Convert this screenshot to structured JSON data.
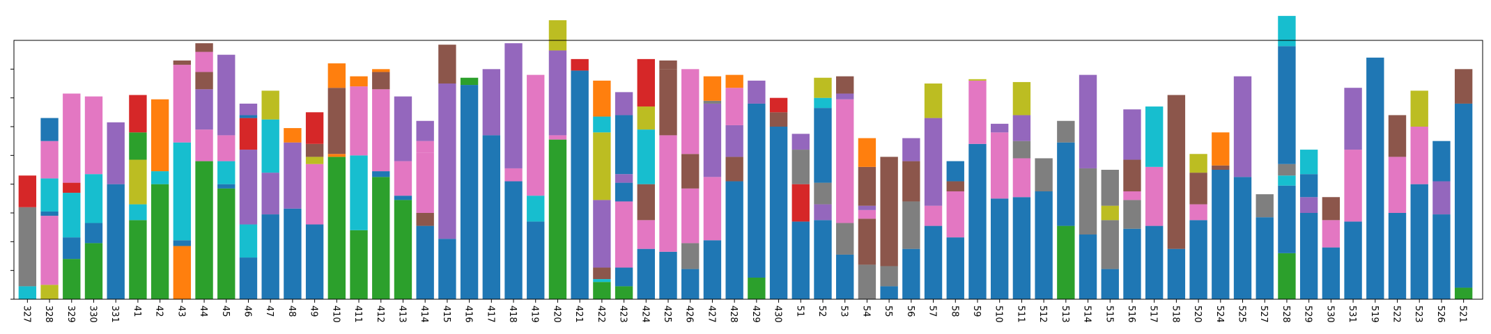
{
  "chart_data": {
    "type": "bar",
    "stacked": true,
    "title": "",
    "xlabel": "",
    "ylabel": "",
    "ylim": [
      0,
      90
    ],
    "yticks": [
      0,
      10,
      20,
      30,
      40,
      50,
      60,
      70,
      80
    ],
    "ytick_labels_visible": false,
    "grid": false,
    "legend": "none",
    "colors": {
      "blue": "#1f77b4",
      "orange": "#ff7f0e",
      "green": "#2ca02c",
      "red": "#d62728",
      "purple": "#9467bd",
      "brown": "#8c564b",
      "pink": "#e377c2",
      "gray": "#7f7f7f",
      "olive": "#bcbd22",
      "cyan": "#17becf"
    },
    "categories": [
      "327",
      "328",
      "329",
      "330",
      "331",
      "41",
      "42",
      "43",
      "44",
      "45",
      "46",
      "47",
      "48",
      "49",
      "410",
      "411",
      "412",
      "413",
      "414",
      "415",
      "416",
      "417",
      "418",
      "419",
      "420",
      "421",
      "422",
      "423",
      "424",
      "425",
      "426",
      "427",
      "428",
      "429",
      "430",
      "51",
      "52",
      "53",
      "54",
      "55",
      "56",
      "57",
      "58",
      "59",
      "510",
      "511",
      "512",
      "513",
      "514",
      "515",
      "516",
      "517",
      "518",
      "520",
      "524",
      "525",
      "527",
      "528",
      "529",
      "530",
      "531",
      "519",
      "522",
      "523",
      "526",
      "521"
    ],
    "stacks": [
      [
        [
          "cyan",
          4.5
        ],
        [
          "gray",
          27.5
        ],
        [
          "red",
          11
        ]
      ],
      [
        [
          "olive",
          5
        ],
        [
          "pink",
          24
        ],
        [
          "blue",
          1.5
        ],
        [
          "cyan",
          11.5
        ],
        [
          "pink",
          13
        ],
        [
          "blue",
          8
        ]
      ],
      [
        [
          "green",
          14
        ],
        [
          "blue",
          7.5
        ],
        [
          "cyan",
          15.5
        ],
        [
          "red",
          3.5
        ],
        [
          "pink",
          31
        ]
      ],
      [
        [
          "green",
          19.5
        ],
        [
          "blue",
          7
        ],
        [
          "cyan",
          17
        ],
        [
          "pink",
          27
        ]
      ],
      [
        [
          "blue",
          40
        ],
        [
          "purple",
          21.5
        ]
      ],
      [
        [
          "green",
          27.5
        ],
        [
          "cyan",
          5.5
        ],
        [
          "olive",
          15.5
        ],
        [
          "green",
          9.5
        ],
        [
          "red",
          13
        ]
      ],
      [
        [
          "green",
          40
        ],
        [
          "cyan",
          4.5
        ],
        [
          "orange",
          25
        ]
      ],
      [
        [
          "orange",
          18.5
        ],
        [
          "blue",
          2
        ],
        [
          "cyan",
          34
        ],
        [
          "pink",
          27
        ],
        [
          "brown",
          1.5
        ]
      ],
      [
        [
          "green",
          48
        ],
        [
          "pink",
          11
        ],
        [
          "purple",
          14
        ],
        [
          "brown",
          6
        ],
        [
          "pink",
          7
        ],
        [
          "brown",
          3
        ]
      ],
      [
        [
          "green",
          38.5
        ],
        [
          "blue",
          1.5
        ],
        [
          "cyan",
          8
        ],
        [
          "pink",
          9
        ],
        [
          "purple",
          28
        ]
      ],
      [
        [
          "blue",
          14.5
        ],
        [
          "cyan",
          11.5
        ],
        [
          "purple",
          26
        ],
        [
          "red",
          11
        ],
        [
          "blue",
          1
        ],
        [
          "purple",
          4
        ]
      ],
      [
        [
          "blue",
          29.5
        ],
        [
          "purple",
          14.5
        ],
        [
          "cyan",
          18.5
        ],
        [
          "olive",
          10
        ]
      ],
      [
        [
          "blue",
          31.5
        ],
        [
          "purple",
          23
        ],
        [
          "orange",
          5
        ]
      ],
      [
        [
          "blue",
          26
        ],
        [
          "pink",
          21
        ],
        [
          "olive",
          2.5
        ],
        [
          "brown",
          4.5
        ],
        [
          "red",
          11
        ]
      ],
      [
        [
          "green",
          49.5
        ],
        [
          "orange",
          1
        ],
        [
          "brown",
          23
        ],
        [
          "orange",
          8.5
        ]
      ],
      [
        [
          "green",
          24
        ],
        [
          "cyan",
          26
        ],
        [
          "pink",
          24
        ],
        [
          "orange",
          3.5
        ]
      ],
      [
        [
          "green",
          42.5
        ],
        [
          "blue",
          2
        ],
        [
          "pink",
          28.5
        ],
        [
          "brown",
          6
        ],
        [
          "orange",
          1
        ]
      ],
      [
        [
          "green",
          34.5
        ],
        [
          "blue",
          1.5
        ],
        [
          "pink",
          12
        ],
        [
          "purple",
          22.5
        ]
      ],
      [
        [
          "blue",
          25.5
        ],
        [
          "brown",
          4.5
        ],
        [
          "pink",
          21
        ],
        [
          "pink",
          4
        ],
        [
          "purple",
          7
        ]
      ],
      [
        [
          "blue",
          21
        ],
        [
          "purple",
          54
        ],
        [
          "brown",
          13.5
        ]
      ],
      [
        [
          "blue",
          74.5
        ],
        [
          "green",
          2.5
        ]
      ],
      [
        [
          "blue",
          57
        ],
        [
          "purple",
          23
        ]
      ],
      [
        [
          "blue",
          41
        ],
        [
          "pink",
          4.5
        ],
        [
          "purple",
          43.5
        ]
      ],
      [
        [
          "blue",
          27
        ],
        [
          "cyan",
          9
        ],
        [
          "pink",
          42
        ]
      ],
      [
        [
          "green",
          55.5
        ],
        [
          "pink",
          1.5
        ],
        [
          "purple",
          29.5
        ],
        [
          "olive",
          10.5
        ]
      ],
      [
        [
          "blue",
          79.5
        ],
        [
          "red",
          4
        ]
      ],
      [
        [
          "green",
          6
        ],
        [
          "cyan",
          1
        ],
        [
          "brown",
          4
        ],
        [
          "purple",
          23.5
        ],
        [
          "olive",
          23.5
        ],
        [
          "cyan",
          5.5
        ],
        [
          "orange",
          12.5
        ]
      ],
      [
        [
          "green",
          4.5
        ],
        [
          "blue",
          6.5
        ],
        [
          "pink",
          23
        ],
        [
          "blue",
          6.5
        ],
        [
          "purple",
          3
        ],
        [
          "blue",
          20.5
        ],
        [
          "purple",
          8
        ]
      ],
      [
        [
          "blue",
          17.5
        ],
        [
          "pink",
          10
        ],
        [
          "brown",
          12.5
        ],
        [
          "cyan",
          19
        ],
        [
          "olive",
          8
        ],
        [
          "red",
          16.5
        ]
      ],
      [
        [
          "blue",
          16.5
        ],
        [
          "pink",
          40.5
        ],
        [
          "brown",
          23
        ],
        [
          "brown",
          3
        ]
      ],
      [
        [
          "blue",
          10.5
        ],
        [
          "gray",
          9
        ],
        [
          "pink",
          19
        ],
        [
          "brown",
          12
        ],
        [
          "pink",
          29.5
        ]
      ],
      [
        [
          "blue",
          20.5
        ],
        [
          "pink",
          22
        ],
        [
          "purple",
          25.5
        ],
        [
          "gray",
          1
        ],
        [
          "orange",
          8.5
        ]
      ],
      [
        [
          "blue",
          41
        ],
        [
          "brown",
          8.5
        ],
        [
          "purple",
          11
        ],
        [
          "pink",
          13
        ],
        [
          "orange",
          4.5
        ]
      ],
      [
        [
          "green",
          7.5
        ],
        [
          "blue",
          60.5
        ],
        [
          "purple",
          8
        ]
      ],
      [
        [
          "blue",
          60
        ],
        [
          "brown",
          5
        ],
        [
          "red",
          5
        ]
      ],
      [
        [
          "blue",
          27
        ],
        [
          "red",
          13
        ],
        [
          "gray",
          12
        ],
        [
          "purple",
          5.5
        ]
      ],
      [
        [
          "blue",
          27.5
        ],
        [
          "purple",
          5.5
        ],
        [
          "gray",
          7.5
        ],
        [
          "blue",
          26
        ],
        [
          "cyan",
          3.5
        ],
        [
          "olive",
          7
        ]
      ],
      [
        [
          "blue",
          15.5
        ],
        [
          "gray",
          11
        ],
        [
          "pink",
          43
        ],
        [
          "purple",
          2
        ],
        [
          "brown",
          6
        ]
      ],
      [
        [
          "gray",
          12
        ],
        [
          "brown",
          16
        ],
        [
          "pink",
          3
        ],
        [
          "purple",
          1.5
        ],
        [
          "brown",
          13.5
        ],
        [
          "orange",
          10
        ]
      ],
      [
        [
          "blue",
          4.5
        ],
        [
          "gray",
          7
        ],
        [
          "brown",
          38
        ]
      ],
      [
        [
          "blue",
          17.5
        ],
        [
          "gray",
          16.5
        ],
        [
          "brown",
          14
        ],
        [
          "purple",
          8
        ]
      ],
      [
        [
          "blue",
          25.5
        ],
        [
          "pink",
          7
        ],
        [
          "purple",
          30.5
        ],
        [
          "olive",
          12
        ]
      ],
      [
        [
          "blue",
          21.5
        ],
        [
          "pink",
          16
        ],
        [
          "brown",
          3.5
        ],
        [
          "blue",
          7
        ]
      ],
      [
        [
          "blue",
          54
        ],
        [
          "pink",
          22
        ],
        [
          "olive",
          0.5
        ]
      ],
      [
        [
          "blue",
          35
        ],
        [
          "pink",
          23
        ],
        [
          "purple",
          3
        ]
      ],
      [
        [
          "blue",
          35.5
        ],
        [
          "pink",
          13.5
        ],
        [
          "gray",
          6
        ],
        [
          "purple",
          9
        ],
        [
          "olive",
          11.5
        ]
      ],
      [
        [
          "blue",
          37.5
        ],
        [
          "gray",
          11.5
        ]
      ],
      [
        [
          "green",
          25.5
        ],
        [
          "blue",
          29
        ],
        [
          "gray",
          7.5
        ]
      ],
      [
        [
          "blue",
          22.5
        ],
        [
          "gray",
          23
        ],
        [
          "purple",
          32.5
        ]
      ],
      [
        [
          "blue",
          10.5
        ],
        [
          "gray",
          17
        ],
        [
          "olive",
          5
        ],
        [
          "gray",
          12.5
        ]
      ],
      [
        [
          "blue",
          24.5
        ],
        [
          "gray",
          10
        ],
        [
          "pink",
          3
        ],
        [
          "brown",
          11
        ],
        [
          "purple",
          17.5
        ]
      ],
      [
        [
          "blue",
          25.5
        ],
        [
          "pink",
          20.5
        ],
        [
          "cyan",
          21
        ]
      ],
      [
        [
          "blue",
          17.5
        ],
        [
          "brown",
          53.5
        ]
      ],
      [
        [
          "blue",
          27.5
        ],
        [
          "pink",
          5.5
        ],
        [
          "brown",
          11
        ],
        [
          "olive",
          6.5
        ]
      ],
      [
        [
          "blue",
          45
        ],
        [
          "brown",
          1.5
        ],
        [
          "orange",
          11.5
        ]
      ],
      [
        [
          "blue",
          42.5
        ],
        [
          "purple",
          35
        ]
      ],
      [
        [
          "blue",
          28.5
        ],
        [
          "gray",
          8
        ]
      ],
      [
        [
          "green",
          16
        ],
        [
          "blue",
          23.5
        ],
        [
          "cyan",
          3.5
        ],
        [
          "gray",
          4
        ],
        [
          "blue",
          41
        ],
        [
          "cyan",
          10.5
        ]
      ],
      [
        [
          "blue",
          30
        ],
        [
          "purple",
          5.5
        ],
        [
          "blue",
          8
        ],
        [
          "cyan",
          8.5
        ]
      ],
      [
        [
          "blue",
          18
        ],
        [
          "pink",
          9.5
        ],
        [
          "brown",
          8
        ]
      ],
      [
        [
          "blue",
          27
        ],
        [
          "pink",
          25
        ],
        [
          "purple",
          21.5
        ]
      ],
      [
        [
          "blue",
          84
        ]
      ],
      [
        [
          "blue",
          30
        ],
        [
          "pink",
          19.5
        ],
        [
          "brown",
          14.5
        ]
      ],
      [
        [
          "blue",
          40
        ],
        [
          "pink",
          20
        ],
        [
          "olive",
          12.5
        ]
      ],
      [
        [
          "blue",
          29.5
        ],
        [
          "purple",
          11.5
        ],
        [
          "blue",
          14
        ]
      ],
      [
        [
          "green",
          4
        ],
        [
          "blue",
          64
        ],
        [
          "brown",
          12
        ]
      ]
    ]
  }
}
